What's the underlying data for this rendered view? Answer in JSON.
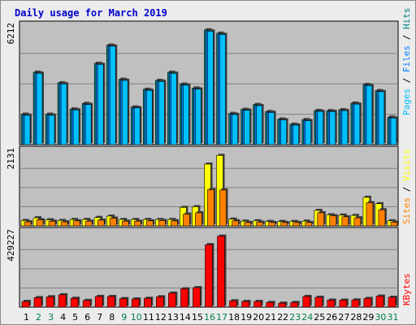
{
  "page": {
    "title": "Daily usage for March 2019"
  },
  "colors": {
    "pages": "#00c0ff",
    "files": "#0080ff",
    "hits": "#008080",
    "visits": "#ffff00",
    "sites": "#ff8000",
    "kbytes": "#ff0000",
    "weekday": "#000000",
    "weekend": "#00804a",
    "panel": "#c0c0c0"
  },
  "chart_data": [
    {
      "type": "bar",
      "categories": [
        "1",
        "2",
        "3",
        "4",
        "5",
        "6",
        "7",
        "8",
        "9",
        "10",
        "11",
        "12",
        "13",
        "14",
        "15",
        "16",
        "17",
        "18",
        "19",
        "20",
        "21",
        "22",
        "23",
        "24",
        "25",
        "26",
        "27",
        "28",
        "29",
        "30",
        "31"
      ],
      "weekend_days": [
        "2",
        "3",
        "9",
        "10",
        "16",
        "17",
        "23",
        "24",
        "30",
        "31"
      ],
      "ymax_label": "6212",
      "ylim": [
        0,
        6212
      ],
      "legend": [
        "Pages",
        "Files",
        "Hits"
      ],
      "series": [
        {
          "name": "Hits",
          "values": [
            1640,
            3900,
            1640,
            3330,
            1920,
            2220,
            4380,
            5360,
            3520,
            2030,
            2980,
            3460,
            3900,
            3260,
            3050,
            6180,
            6000,
            1680,
            1900,
            2160,
            1780,
            1380,
            1100,
            1350,
            1840,
            1830,
            1880,
            2240,
            3240,
            2910,
            1480
          ]
        },
        {
          "name": "Files",
          "values": [
            1600,
            3860,
            1600,
            3290,
            1890,
            2180,
            4340,
            5320,
            3480,
            2000,
            2940,
            3420,
            3860,
            3220,
            3010,
            6130,
            5950,
            1640,
            1870,
            2120,
            1750,
            1350,
            1070,
            1310,
            1810,
            1800,
            1850,
            2200,
            3200,
            2870,
            1450
          ]
        },
        {
          "name": "Pages",
          "values": [
            1580,
            3840,
            1580,
            3270,
            1870,
            2160,
            4320,
            5300,
            3460,
            1980,
            2920,
            3400,
            3840,
            3200,
            2990,
            6110,
            5930,
            1620,
            1850,
            2100,
            1730,
            1330,
            1050,
            1290,
            1790,
            1780,
            1830,
            2180,
            3180,
            2850,
            1430
          ]
        }
      ]
    },
    {
      "type": "bar",
      "categories": [
        "1",
        "2",
        "3",
        "4",
        "5",
        "6",
        "7",
        "8",
        "9",
        "10",
        "11",
        "12",
        "13",
        "14",
        "15",
        "16",
        "17",
        "18",
        "19",
        "20",
        "21",
        "22",
        "23",
        "24",
        "25",
        "26",
        "27",
        "28",
        "29",
        "30",
        "31"
      ],
      "ymax_label": "2131",
      "ylim": [
        0,
        2131
      ],
      "legend": [
        "Sites",
        "Visits"
      ],
      "series": [
        {
          "name": "Visits",
          "values": [
            160,
            240,
            180,
            160,
            190,
            190,
            250,
            290,
            190,
            190,
            190,
            190,
            190,
            550,
            570,
            1840,
            2100,
            200,
            140,
            150,
            130,
            130,
            130,
            140,
            460,
            330,
            320,
            310,
            850,
            660,
            150
          ]
        },
        {
          "name": "Sites",
          "values": [
            120,
            180,
            140,
            120,
            150,
            140,
            170,
            230,
            140,
            140,
            150,
            160,
            150,
            350,
            390,
            1080,
            1070,
            150,
            100,
            110,
            100,
            100,
            100,
            100,
            390,
            300,
            270,
            240,
            690,
            480,
            110
          ]
        }
      ]
    },
    {
      "type": "bar",
      "categories": [
        "1",
        "2",
        "3",
        "4",
        "5",
        "6",
        "7",
        "8",
        "9",
        "10",
        "11",
        "12",
        "13",
        "14",
        "15",
        "16",
        "17",
        "18",
        "19",
        "20",
        "21",
        "22",
        "23",
        "24",
        "25",
        "26",
        "27",
        "28",
        "29",
        "30",
        "31"
      ],
      "ymax_label": "429227",
      "ylim": [
        0,
        429227
      ],
      "legend": [
        "KBytes"
      ],
      "series": [
        {
          "name": "KBytes",
          "values": [
            34000,
            57000,
            62000,
            74000,
            53000,
            40000,
            64000,
            64000,
            51000,
            49000,
            53000,
            62000,
            84000,
            110000,
            117000,
            375000,
            426000,
            38000,
            34000,
            34000,
            28000,
            24000,
            28000,
            64000,
            59000,
            42000,
            42000,
            43000,
            52000,
            66000,
            59000
          ]
        }
      ]
    }
  ]
}
